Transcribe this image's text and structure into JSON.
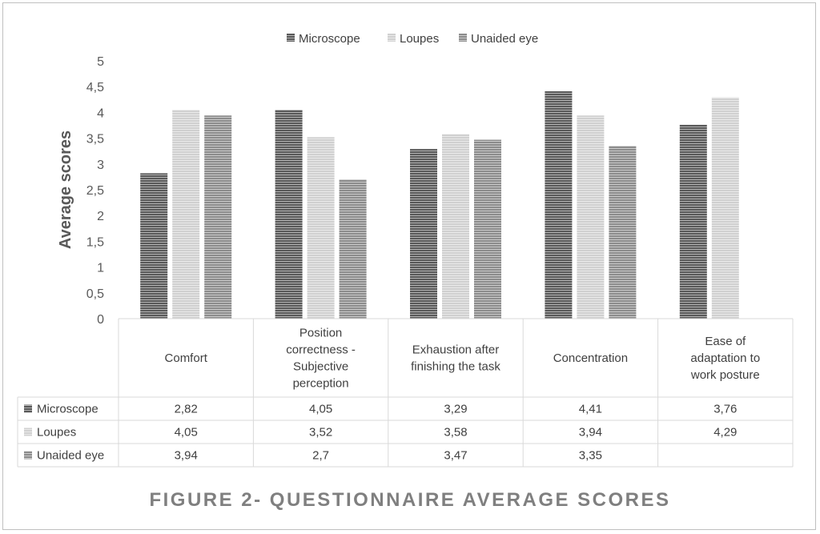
{
  "figure_title": "FIGURE 2- QUESTIONNAIRE AVERAGE SCORES",
  "colors": {
    "Microscope": "#595959",
    "Loupes": "#d0d0d0",
    "Unaided eye": "#8c8c8c",
    "stripe": "#ffffff"
  },
  "chart_data": {
    "type": "bar",
    "ylabel": "Average scores",
    "ylim": [
      0,
      5
    ],
    "yticks": [
      "0",
      "0,5",
      "1",
      "1,5",
      "2",
      "2,5",
      "3",
      "3,5",
      "4",
      "4,5",
      "5"
    ],
    "legend_position": "top",
    "grid": false,
    "categories": [
      [
        "Comfort"
      ],
      [
        "Position",
        "correctness -",
        "Subjective",
        "perception"
      ],
      [
        "Exhaustion after",
        "finishing the task"
      ],
      [
        "Concentration"
      ],
      [
        "Ease of",
        "adaptation to",
        "work posture"
      ]
    ],
    "series": [
      {
        "name": "Microscope",
        "values": [
          2.82,
          4.05,
          3.29,
          4.41,
          3.76
        ],
        "labels": [
          "2,82",
          "4,05",
          "3,29",
          "4,41",
          "3,76"
        ]
      },
      {
        "name": "Loupes",
        "values": [
          4.05,
          3.52,
          3.58,
          3.94,
          4.29
        ],
        "labels": [
          "4,05",
          "3,52",
          "3,58",
          "3,94",
          "4,29"
        ]
      },
      {
        "name": "Unaided eye",
        "values": [
          3.94,
          2.7,
          3.47,
          3.35,
          null
        ],
        "labels": [
          "3,94",
          "2,7",
          "3,47",
          "3,35",
          ""
        ]
      }
    ]
  }
}
